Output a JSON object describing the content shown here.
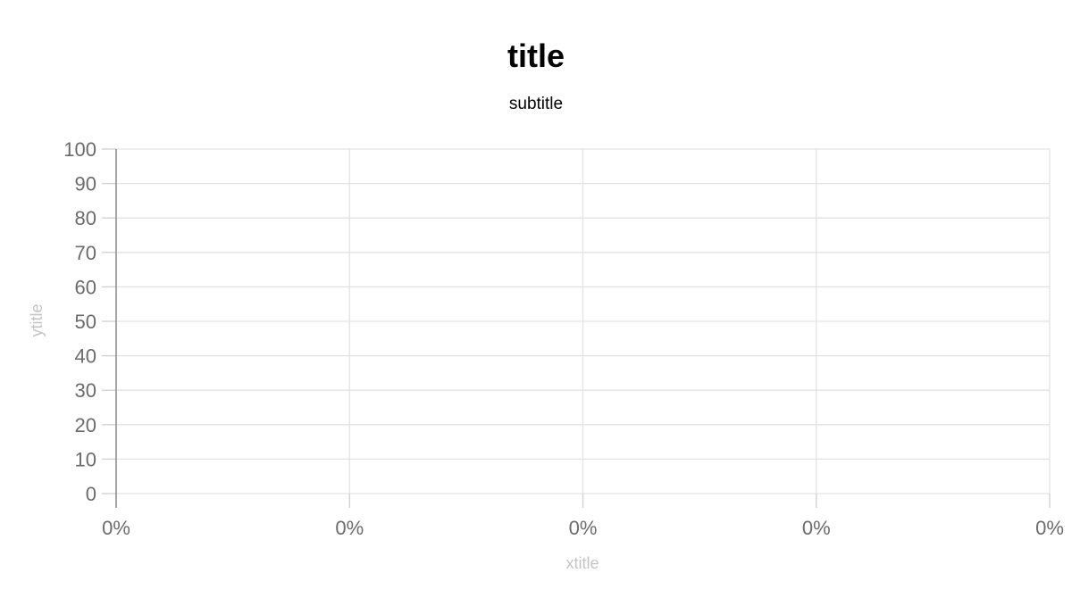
{
  "chart_data": {
    "type": "line",
    "title": "title",
    "subtitle": "subtitle",
    "xlabel": "xtitle",
    "ylabel": "ytitle",
    "ylim": [
      0,
      100
    ],
    "y_ticks": [
      "0",
      "10",
      "20",
      "30",
      "40",
      "50",
      "60",
      "70",
      "80",
      "90",
      "100"
    ],
    "x_ticks": [
      "0%",
      "0%",
      "0%",
      "0%",
      "0%"
    ],
    "series": [],
    "grid": true
  }
}
